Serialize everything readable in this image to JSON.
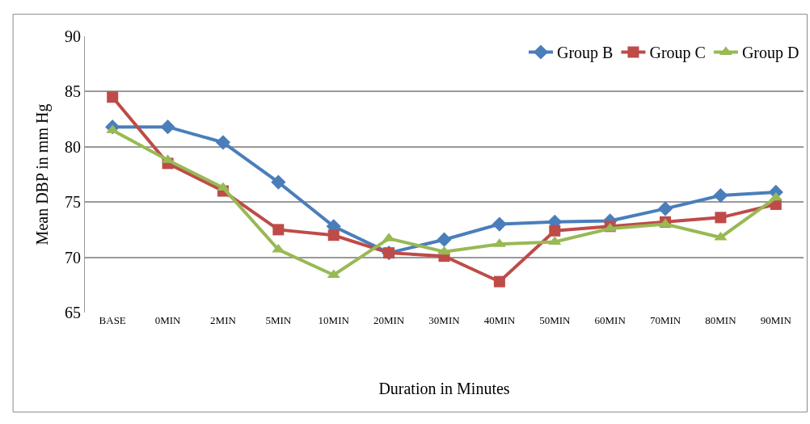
{
  "chart_data": {
    "type": "line",
    "xlabel": "Duration in Minutes",
    "ylabel": "Mean DBP in mm Hg",
    "categories": [
      "BASE",
      "0MIN",
      "2MIN",
      "5MIN",
      "10MIN",
      "20MIN",
      "30MIN",
      "40MIN",
      "50MIN",
      "60MIN",
      "70MIN",
      "80MIN",
      "90MIN"
    ],
    "series": [
      {
        "name": "Group B",
        "color": "#4a7ebb",
        "marker": "diamond",
        "values": [
          81.8,
          81.8,
          80.4,
          76.8,
          72.8,
          70.4,
          71.6,
          73.0,
          73.2,
          73.3,
          74.4,
          75.6,
          75.9
        ]
      },
      {
        "name": "Group C",
        "color": "#be4b48",
        "marker": "square",
        "values": [
          84.5,
          78.5,
          76.0,
          72.5,
          72.0,
          70.4,
          70.1,
          67.8,
          72.4,
          72.8,
          73.2,
          73.6,
          74.8
        ]
      },
      {
        "name": "Group D",
        "color": "#98b954",
        "marker": "triangle",
        "values": [
          81.5,
          78.8,
          76.3,
          70.7,
          68.4,
          71.7,
          70.5,
          71.2,
          71.4,
          72.6,
          73.0,
          71.8,
          75.4
        ]
      }
    ],
    "ylim": [
      65,
      90
    ],
    "yticks": [
      65,
      70,
      75,
      80,
      85,
      90
    ],
    "grid": "y",
    "legend": "top right",
    "line_style": "solid"
  }
}
